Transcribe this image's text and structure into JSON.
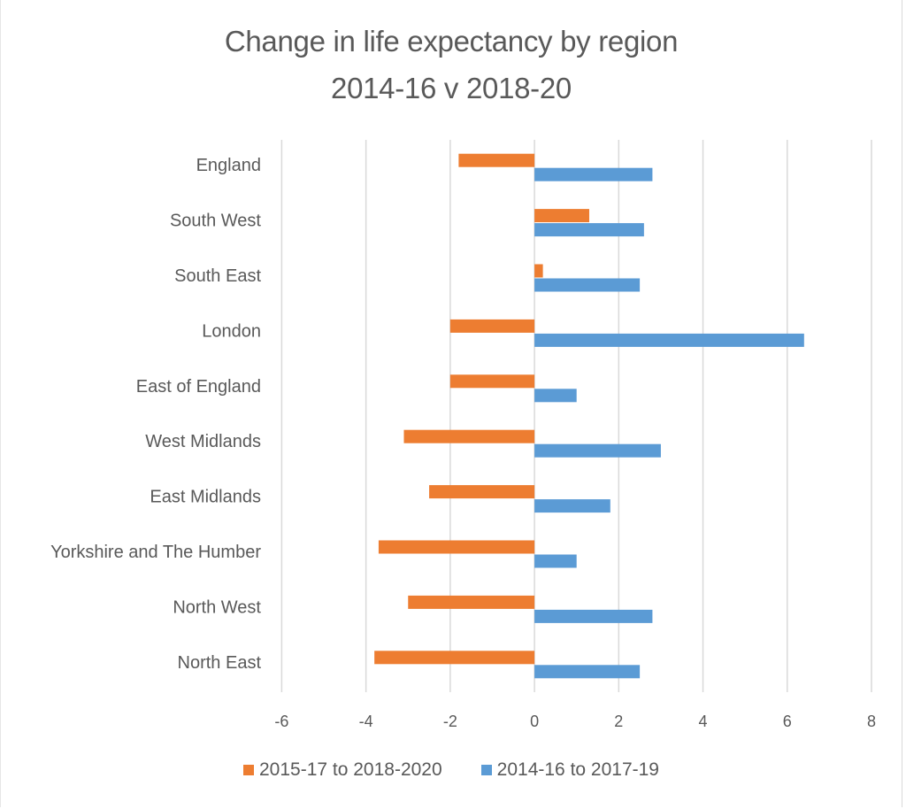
{
  "chart_data": {
    "type": "bar",
    "orientation": "horizontal",
    "title": "Change in life expectancy by region",
    "subtitle": "2014-16 v 2018-20",
    "xlabel": "",
    "ylabel": "",
    "xlim": [
      -6,
      8
    ],
    "x_ticks": [
      -6,
      -4,
      -2,
      0,
      2,
      4,
      6,
      8
    ],
    "grid": true,
    "legend_position": "bottom",
    "categories": [
      "England",
      "South West",
      "South East",
      "London",
      "East of England",
      "West Midlands",
      "East Midlands",
      "Yorkshire and The Humber",
      "North West",
      "North East"
    ],
    "series": [
      {
        "name": "2015-17 to 2018-2020",
        "color": "#ED7D31",
        "values": [
          -1.8,
          1.3,
          0.2,
          -2.0,
          -2.0,
          -3.1,
          -2.5,
          -3.7,
          -3.0,
          -3.8
        ]
      },
      {
        "name": "2014-16 to 2017-19",
        "color": "#5B9BD5",
        "values": [
          2.8,
          2.6,
          2.5,
          6.4,
          1.0,
          3.0,
          1.8,
          1.0,
          2.8,
          2.5
        ]
      }
    ]
  }
}
